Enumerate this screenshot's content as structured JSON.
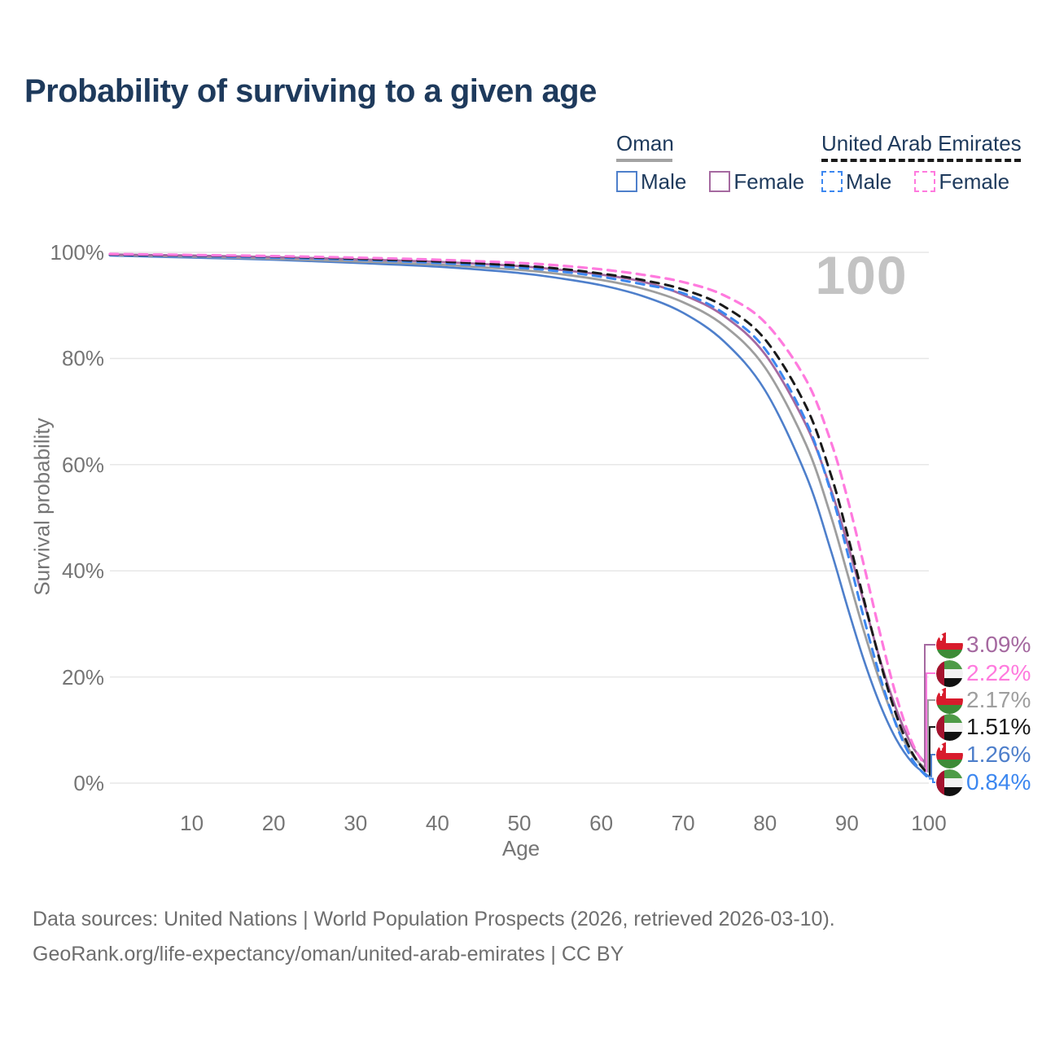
{
  "title": "Probability of surviving to a given age",
  "watermark": "100",
  "legend": {
    "oman": {
      "label": "Oman",
      "male": "Male",
      "female": "Female"
    },
    "uae": {
      "label": "United Arab Emirates",
      "male": "Male",
      "female": "Female"
    }
  },
  "colors": {
    "oman_male": "#4E7FCB",
    "oman_female": "#A569A0",
    "oman_total": "#9E9E9E",
    "uae_male": "#3C87F0",
    "uae_female": "#FF7ADE",
    "uae_total": "#1A1A1A",
    "grid": "#E7E7E7",
    "axis_text": "#757575",
    "title_text": "#1E3A5C",
    "watermark_text": "#C3C3C3"
  },
  "chart_data": {
    "type": "line",
    "title": "Probability of surviving to a given age",
    "xlabel": "Age",
    "ylabel": "Survival probability",
    "xlim": [
      0,
      100
    ],
    "ylim": [
      0,
      100
    ],
    "x_ticks": [
      10,
      20,
      30,
      40,
      50,
      60,
      70,
      80,
      90,
      100
    ],
    "y_ticks": [
      0,
      20,
      40,
      60,
      80,
      100
    ],
    "y_tick_labels": [
      "0%",
      "20%",
      "40%",
      "60%",
      "80%",
      "100%"
    ],
    "grid": "horizontal",
    "legend_position": "top-right",
    "x": [
      0,
      10,
      20,
      30,
      40,
      50,
      55,
      60,
      65,
      70,
      75,
      80,
      85,
      88,
      90,
      92,
      94,
      96,
      98,
      100
    ],
    "series": [
      {
        "name": "Oman Male",
        "color_key": "oman_male",
        "dashed": false,
        "width": 2.6,
        "values": [
          99.4,
          99.0,
          98.6,
          98.0,
          97.3,
          96.1,
          95.1,
          93.8,
          91.8,
          88.6,
          83.2,
          74.0,
          58.0,
          44.0,
          33.5,
          23.5,
          15.0,
          8.3,
          3.8,
          1.26
        ]
      },
      {
        "name": "Oman Total",
        "color_key": "oman_total",
        "dashed": false,
        "width": 2.8,
        "values": [
          99.5,
          99.2,
          98.8,
          98.3,
          97.7,
          96.7,
          95.9,
          94.8,
          93.2,
          90.6,
          86.2,
          78.3,
          63.8,
          50.5,
          39.8,
          29.0,
          19.3,
          11.2,
          5.3,
          2.17
        ]
      },
      {
        "name": "Oman Female",
        "color_key": "oman_female",
        "dashed": false,
        "width": 2.8,
        "values": [
          99.6,
          99.4,
          99.1,
          98.7,
          98.2,
          97.4,
          96.7,
          95.8,
          94.5,
          92.0,
          88.0,
          80.8,
          67.5,
          55.5,
          45.5,
          34.5,
          23.5,
          14.0,
          6.9,
          3.09
        ]
      },
      {
        "name": "United Arab Emirates Male",
        "color_key": "uae_male",
        "dashed": true,
        "width": 3.0,
        "values": [
          99.5,
          99.3,
          99.0,
          98.6,
          98.0,
          97.1,
          96.4,
          95.4,
          94.0,
          92.3,
          88.5,
          81.8,
          68.2,
          55.0,
          43.8,
          31.5,
          20.3,
          11.0,
          4.4,
          0.84
        ]
      },
      {
        "name": "United Arab Emirates Total",
        "color_key": "uae_total",
        "dashed": true,
        "width": 3.0,
        "values": [
          99.6,
          99.4,
          99.2,
          98.8,
          98.3,
          97.5,
          96.9,
          96.0,
          94.8,
          93.0,
          89.8,
          83.6,
          71.0,
          58.3,
          47.2,
          35.0,
          23.2,
          12.9,
          5.6,
          1.51
        ]
      },
      {
        "name": "United Arab Emirates Female",
        "color_key": "uae_female",
        "dashed": true,
        "width": 3.2,
        "values": [
          99.7,
          99.5,
          99.3,
          99.0,
          98.6,
          98.0,
          97.5,
          96.8,
          95.8,
          94.4,
          91.9,
          86.8,
          76.0,
          64.5,
          54.0,
          41.5,
          28.5,
          16.5,
          7.5,
          2.22
        ]
      }
    ]
  },
  "end_labels": [
    {
      "text": "3.09%",
      "value": 3.09,
      "flag": "oman",
      "color_key": "oman_female",
      "series": "Oman Female"
    },
    {
      "text": "2.22%",
      "value": 2.22,
      "flag": "uae",
      "color_key": "uae_female",
      "series": "United Arab Emirates Female"
    },
    {
      "text": "2.17%",
      "value": 2.17,
      "flag": "oman",
      "color_key": "oman_total",
      "series": "Oman Total"
    },
    {
      "text": "1.51%",
      "value": 1.51,
      "flag": "uae",
      "color_key": "uae_total",
      "series": "United Arab Emirates Total"
    },
    {
      "text": "1.26%",
      "value": 1.26,
      "flag": "oman",
      "color_key": "oman_male",
      "series": "Oman Male"
    },
    {
      "text": "0.84%",
      "value": 0.84,
      "flag": "uae",
      "color_key": "uae_male",
      "series": "United Arab Emirates Male"
    }
  ],
  "footer": {
    "line1": "Data sources: United Nations | World Population Prospects (2026, retrieved 2026-03-10).",
    "line2": "GeoRank.org/life-expectancy/oman/united-arab-emirates | CC BY"
  }
}
